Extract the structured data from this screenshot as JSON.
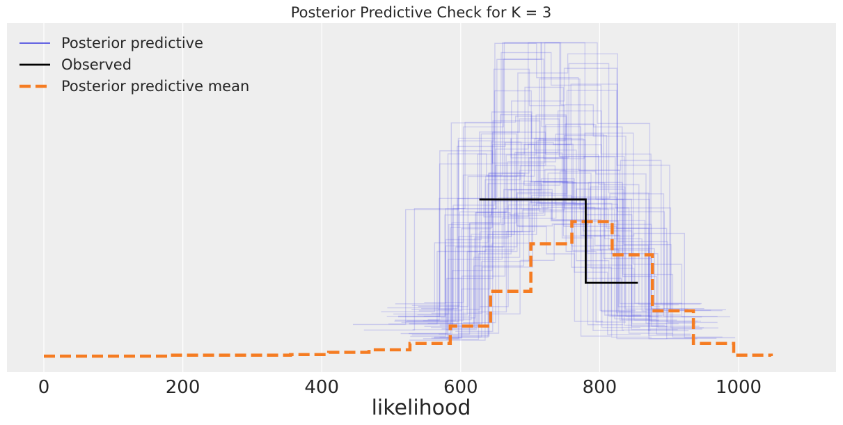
{
  "chart_data": {
    "type": "line",
    "title": "Posterior Predictive Check for K = 3",
    "xlabel": "likelihood",
    "ylabel": "",
    "xlim": [
      -50,
      1140
    ],
    "ylim": [
      0,
      1
    ],
    "xticks": [
      0,
      200,
      400,
      600,
      800,
      1000
    ],
    "xtick_labels": [
      "0",
      "200",
      "400",
      "600",
      "800",
      "1000"
    ],
    "grid": true,
    "legend_position": "top-left",
    "legend": [
      {
        "label": "Posterior predictive",
        "style": "thin-line",
        "color": "#3333dd"
      },
      {
        "label": "Observed",
        "style": "line",
        "color": "#000000"
      },
      {
        "label": "Posterior predictive mean",
        "style": "dashed",
        "color": "#f57c22"
      }
    ],
    "observed": {
      "name": "Observed",
      "color": "#000000",
      "step_x": [
        627,
        780,
        855
      ],
      "step_y": [
        0.495,
        0.232
      ]
    },
    "posterior_predictive_mean": {
      "name": "Posterior predictive mean",
      "color": "#f57c22",
      "step_x": [
        0,
        180,
        355,
        410,
        468,
        527,
        585,
        643,
        701,
        760,
        818,
        876,
        935,
        993,
        1047
      ],
      "step_y": [
        0.0,
        0.003,
        0.005,
        0.012,
        0.02,
        0.04,
        0.095,
        0.205,
        0.355,
        0.425,
        0.32,
        0.143,
        0.04,
        0.003,
        0.0
      ]
    },
    "posterior_predictive": {
      "name": "Posterior predictive",
      "color": "#5050e8",
      "opacity": 0.22,
      "draws": 60
    }
  }
}
